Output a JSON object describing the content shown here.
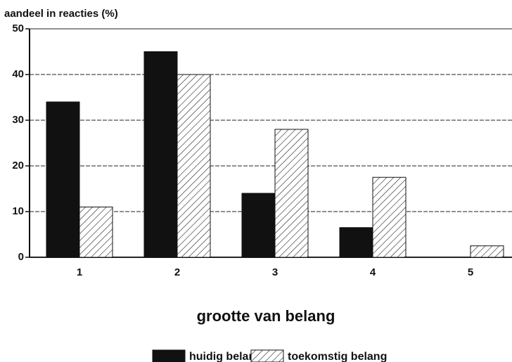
{
  "chart_data": {
    "type": "bar",
    "y_label": "aandeel in reacties (%)",
    "x_label": "grootte van belang",
    "categories": [
      "1",
      "2",
      "3",
      "4",
      "5"
    ],
    "series": [
      {
        "name": "huidig belang",
        "color": "#111111",
        "hatch": false,
        "values": [
          34,
          45,
          14,
          6.5,
          0
        ]
      },
      {
        "name": "toekomstig belang",
        "color": "#ffffff",
        "hatch": true,
        "values": [
          11,
          40,
          28,
          17.5,
          2.5
        ]
      }
    ],
    "ylim": [
      0,
      50
    ],
    "yticks": [
      0,
      10,
      20,
      30,
      40,
      50
    ],
    "grid": true
  }
}
